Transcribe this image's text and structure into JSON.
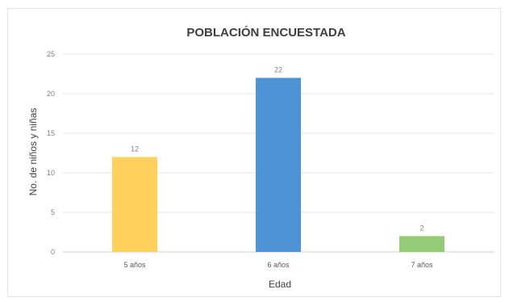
{
  "chart_data": {
    "type": "bar",
    "title": "POBLACIÓN ENCUESTADA",
    "xlabel": "Edad",
    "ylabel": "No. de niños y niñas",
    "categories": [
      "5 años",
      "6 años",
      "7 años"
    ],
    "values": [
      12,
      22,
      2
    ],
    "data_labels": [
      "12",
      "22",
      "2"
    ],
    "bar_colors": [
      "#FFD15C",
      "#4E93D6",
      "#93CB76"
    ],
    "ylim": [
      0,
      25
    ],
    "yticks": [
      0,
      5,
      10,
      15,
      20,
      25
    ],
    "grid": true,
    "legend": "none"
  }
}
